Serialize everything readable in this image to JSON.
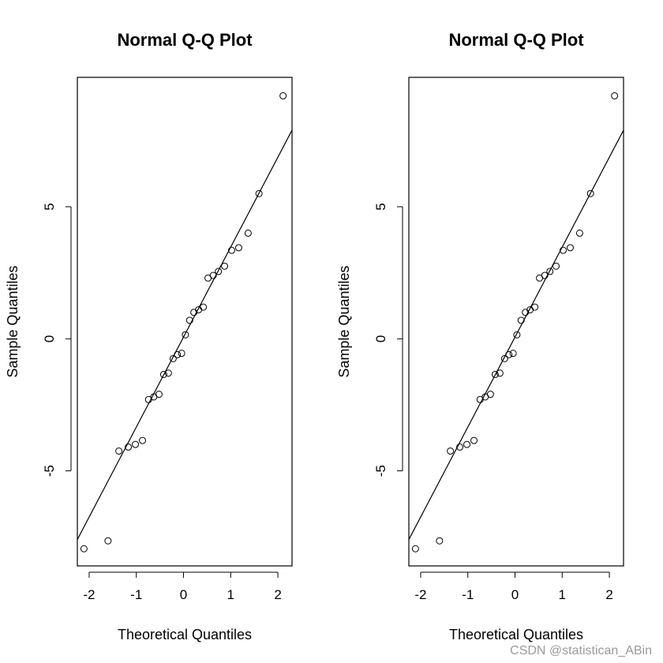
{
  "chart_data": [
    {
      "type": "scatter",
      "title": "Normal Q-Q Plot",
      "xlabel": "Theoretical Quantiles",
      "ylabel": "Sample Quantiles",
      "xlim": [
        -2.25,
        2.3
      ],
      "ylim": [
        -8.6,
        9.9
      ],
      "xticks": [
        -2,
        -1,
        0,
        1,
        2
      ],
      "xtick_labels": [
        "-2",
        "-1",
        "0",
        "1",
        "2"
      ],
      "yticks": [
        -5,
        0,
        5
      ],
      "ytick_labels": [
        "-5",
        "0",
        "5"
      ],
      "grid": false,
      "points": {
        "x": [
          -2.11,
          -1.6,
          -1.37,
          -1.17,
          -1.02,
          -0.87,
          -0.74,
          -0.63,
          -0.52,
          -0.42,
          -0.32,
          -0.22,
          -0.13,
          -0.04,
          0.04,
          0.13,
          0.22,
          0.32,
          0.42,
          0.52,
          0.63,
          0.74,
          0.87,
          1.02,
          1.17,
          1.37,
          1.6,
          2.11
        ],
        "y": [
          -7.95,
          -7.65,
          -4.25,
          -4.1,
          -4.0,
          -3.85,
          -2.3,
          -2.2,
          -2.1,
          -1.35,
          -1.3,
          -0.75,
          -0.6,
          -0.55,
          0.15,
          0.7,
          1.0,
          1.1,
          1.2,
          2.3,
          2.4,
          2.55,
          2.75,
          3.35,
          3.45,
          4.0,
          5.5,
          9.2
        ]
      },
      "reference_line": {
        "x": [
          -2.25,
          2.3
        ],
        "y": [
          -7.6,
          7.9
        ]
      }
    },
    {
      "type": "scatter",
      "title": "Normal Q-Q Plot",
      "xlabel": "Theoretical Quantiles",
      "ylabel": "Sample Quantiles",
      "xlim": [
        -2.25,
        2.3
      ],
      "ylim": [
        -8.6,
        9.9
      ],
      "xticks": [
        -2,
        -1,
        0,
        1,
        2
      ],
      "xtick_labels": [
        "-2",
        "-1",
        "0",
        "1",
        "2"
      ],
      "yticks": [
        -5,
        0,
        5
      ],
      "ytick_labels": [
        "-5",
        "0",
        "5"
      ],
      "grid": false,
      "points": {
        "x": [
          -2.11,
          -1.6,
          -1.37,
          -1.17,
          -1.02,
          -0.87,
          -0.74,
          -0.63,
          -0.52,
          -0.42,
          -0.32,
          -0.22,
          -0.13,
          -0.04,
          0.04,
          0.13,
          0.22,
          0.32,
          0.42,
          0.52,
          0.63,
          0.74,
          0.87,
          1.02,
          1.17,
          1.37,
          1.6,
          2.11
        ],
        "y": [
          -7.95,
          -7.65,
          -4.25,
          -4.1,
          -4.0,
          -3.85,
          -2.3,
          -2.2,
          -2.1,
          -1.35,
          -1.3,
          -0.75,
          -0.6,
          -0.55,
          0.15,
          0.7,
          1.0,
          1.1,
          1.2,
          2.3,
          2.4,
          2.55,
          2.75,
          3.35,
          3.45,
          4.0,
          5.5,
          9.2
        ]
      },
      "reference_line": {
        "x": [
          -2.25,
          2.3
        ],
        "y": [
          -7.6,
          7.9
        ]
      }
    }
  ],
  "watermark": "CSDN @statistican_ABin"
}
